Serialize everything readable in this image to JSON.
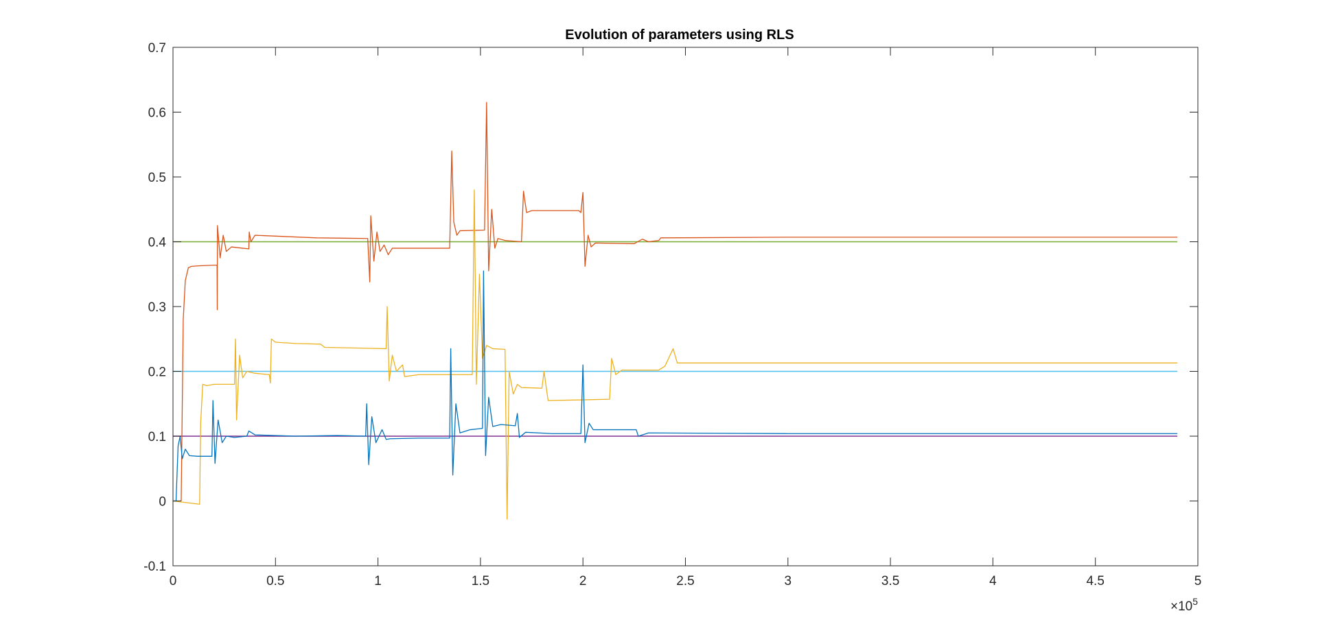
{
  "chart_data": {
    "type": "line",
    "title": "Evolution of parameters using RLS",
    "xlabel": "",
    "ylabel": "",
    "xlim": [
      0,
      500000
    ],
    "ylim": [
      -0.1,
      0.7
    ],
    "x_exponent_label": "×10",
    "x_exponent_power": "5",
    "xticks": [
      0,
      50000,
      100000,
      150000,
      200000,
      250000,
      300000,
      350000,
      400000,
      450000,
      500000
    ],
    "xtick_labels": [
      "0",
      "0.5",
      "1",
      "1.5",
      "2",
      "2.5",
      "3",
      "3.5",
      "4",
      "4.5",
      "5"
    ],
    "yticks": [
      -0.1,
      0,
      0.1,
      0.2,
      0.3,
      0.4,
      0.5,
      0.6,
      0.7
    ],
    "ytick_labels": [
      "-0.1",
      "0",
      "0.1",
      "0.2",
      "0.3",
      "0.4",
      "0.5",
      "0.6",
      "0.7"
    ],
    "grid": false,
    "legend": "none",
    "series": [
      {
        "color": "#D95319",
        "kind": "estimate",
        "points": [
          [
            0,
            0
          ],
          [
            4000,
            0
          ],
          [
            5000,
            0.28
          ],
          [
            6000,
            0.34
          ],
          [
            7500,
            0.36
          ],
          [
            9000,
            0.362
          ],
          [
            13000,
            0.363
          ],
          [
            21500,
            0.364
          ],
          [
            21600,
            0.295
          ],
          [
            21700,
            0.425
          ],
          [
            23000,
            0.375
          ],
          [
            24500,
            0.41
          ],
          [
            26000,
            0.385
          ],
          [
            28500,
            0.392
          ],
          [
            34000,
            0.39
          ],
          [
            37000,
            0.389
          ],
          [
            37200,
            0.415
          ],
          [
            38000,
            0.4
          ],
          [
            40000,
            0.41
          ],
          [
            55000,
            0.408
          ],
          [
            70000,
            0.406
          ],
          [
            95000,
            0.405
          ],
          [
            96000,
            0.338
          ],
          [
            96500,
            0.44
          ],
          [
            98000,
            0.37
          ],
          [
            99500,
            0.415
          ],
          [
            101000,
            0.385
          ],
          [
            103000,
            0.395
          ],
          [
            105000,
            0.38
          ],
          [
            107000,
            0.39
          ],
          [
            135000,
            0.39
          ],
          [
            136000,
            0.54
          ],
          [
            137000,
            0.43
          ],
          [
            138500,
            0.41
          ],
          [
            140000,
            0.417
          ],
          [
            152000,
            0.418
          ],
          [
            153000,
            0.615
          ],
          [
            154000,
            0.355
          ],
          [
            155500,
            0.45
          ],
          [
            157000,
            0.39
          ],
          [
            158500,
            0.405
          ],
          [
            162000,
            0.402
          ],
          [
            170000,
            0.4
          ],
          [
            171000,
            0.478
          ],
          [
            172500,
            0.445
          ],
          [
            175000,
            0.448
          ],
          [
            198000,
            0.448
          ],
          [
            199000,
            0.445
          ],
          [
            200000,
            0.476
          ],
          [
            201000,
            0.362
          ],
          [
            202500,
            0.41
          ],
          [
            204000,
            0.392
          ],
          [
            206000,
            0.398
          ],
          [
            225000,
            0.397
          ],
          [
            229000,
            0.404
          ],
          [
            232000,
            0.4
          ],
          [
            237000,
            0.402
          ],
          [
            238000,
            0.406
          ],
          [
            300000,
            0.407
          ],
          [
            400000,
            0.407
          ],
          [
            490000,
            0.407
          ]
        ]
      },
      {
        "color": "#EDB120",
        "kind": "estimate",
        "points": [
          [
            0,
            0
          ],
          [
            13000,
            -0.005
          ],
          [
            13500,
            0.12
          ],
          [
            14500,
            0.18
          ],
          [
            16500,
            0.178
          ],
          [
            20000,
            0.18
          ],
          [
            30000,
            0.18
          ],
          [
            30500,
            0.25
          ],
          [
            31000,
            0.125
          ],
          [
            32500,
            0.225
          ],
          [
            34000,
            0.19
          ],
          [
            36000,
            0.2
          ],
          [
            40000,
            0.197
          ],
          [
            47000,
            0.195
          ],
          [
            47500,
            0.182
          ],
          [
            48000,
            0.25
          ],
          [
            50000,
            0.245
          ],
          [
            60000,
            0.243
          ],
          [
            72000,
            0.242
          ],
          [
            74000,
            0.237
          ],
          [
            90000,
            0.236
          ],
          [
            104000,
            0.235
          ],
          [
            104500,
            0.3
          ],
          [
            105500,
            0.185
          ],
          [
            107000,
            0.225
          ],
          [
            109000,
            0.2
          ],
          [
            112000,
            0.21
          ],
          [
            113000,
            0.192
          ],
          [
            120000,
            0.195
          ],
          [
            146000,
            0.195
          ],
          [
            147000,
            0.48
          ],
          [
            148000,
            0.18
          ],
          [
            149500,
            0.35
          ],
          [
            151000,
            0.22
          ],
          [
            153000,
            0.24
          ],
          [
            156000,
            0.235
          ],
          [
            162000,
            0.234
          ],
          [
            163000,
            -0.028
          ],
          [
            164000,
            0.2
          ],
          [
            166000,
            0.165
          ],
          [
            168000,
            0.18
          ],
          [
            170000,
            0.175
          ],
          [
            180000,
            0.174
          ],
          [
            181000,
            0.2
          ],
          [
            183000,
            0.155
          ],
          [
            200000,
            0.156
          ],
          [
            213000,
            0.157
          ],
          [
            214000,
            0.22
          ],
          [
            216000,
            0.195
          ],
          [
            219000,
            0.202
          ],
          [
            237000,
            0.202
          ],
          [
            240000,
            0.208
          ],
          [
            244000,
            0.235
          ],
          [
            246000,
            0.213
          ],
          [
            300000,
            0.213
          ],
          [
            400000,
            0.213
          ],
          [
            490000,
            0.213
          ]
        ]
      },
      {
        "color": "#0072BD",
        "kind": "estimate",
        "points": [
          [
            0,
            0
          ],
          [
            1500,
            0
          ],
          [
            2500,
            0.085
          ],
          [
            3500,
            0.1
          ],
          [
            4500,
            0.065
          ],
          [
            6000,
            0.08
          ],
          [
            8000,
            0.07
          ],
          [
            12000,
            0.069
          ],
          [
            19000,
            0.069
          ],
          [
            19500,
            0.155
          ],
          [
            20500,
            0.058
          ],
          [
            22000,
            0.125
          ],
          [
            24000,
            0.09
          ],
          [
            26000,
            0.1
          ],
          [
            30000,
            0.098
          ],
          [
            36000,
            0.1
          ],
          [
            37000,
            0.108
          ],
          [
            40000,
            0.102
          ],
          [
            60000,
            0.1
          ],
          [
            80000,
            0.101
          ],
          [
            94000,
            0.1
          ],
          [
            94500,
            0.15
          ],
          [
            95500,
            0.056
          ],
          [
            97000,
            0.13
          ],
          [
            99000,
            0.09
          ],
          [
            102000,
            0.11
          ],
          [
            104000,
            0.095
          ],
          [
            106000,
            0.096
          ],
          [
            120000,
            0.097
          ],
          [
            135000,
            0.097
          ],
          [
            135500,
            0.235
          ],
          [
            136500,
            0.04
          ],
          [
            138000,
            0.15
          ],
          [
            140000,
            0.105
          ],
          [
            145000,
            0.11
          ],
          [
            151000,
            0.112
          ],
          [
            151500,
            0.355
          ],
          [
            152500,
            0.07
          ],
          [
            154000,
            0.16
          ],
          [
            156000,
            0.115
          ],
          [
            160000,
            0.118
          ],
          [
            167000,
            0.116
          ],
          [
            168000,
            0.135
          ],
          [
            169000,
            0.098
          ],
          [
            172000,
            0.106
          ],
          [
            185000,
            0.104
          ],
          [
            199000,
            0.104
          ],
          [
            200000,
            0.21
          ],
          [
            201000,
            0.09
          ],
          [
            203000,
            0.12
          ],
          [
            205000,
            0.11
          ],
          [
            220000,
            0.11
          ],
          [
            226000,
            0.11
          ],
          [
            227000,
            0.1
          ],
          [
            232000,
            0.105
          ],
          [
            300000,
            0.104
          ],
          [
            400000,
            0.104
          ],
          [
            490000,
            0.104
          ]
        ]
      },
      {
        "color": "#77AC30",
        "kind": "reference",
        "points": [
          [
            0,
            0.4
          ],
          [
            490000,
            0.4
          ]
        ]
      },
      {
        "color": "#4DBEEE",
        "kind": "reference",
        "points": [
          [
            0,
            0.2
          ],
          [
            490000,
            0.2
          ]
        ]
      },
      {
        "color": "#7E2F8E",
        "kind": "reference",
        "points": [
          [
            0,
            0.1
          ],
          [
            490000,
            0.1
          ]
        ]
      }
    ]
  }
}
